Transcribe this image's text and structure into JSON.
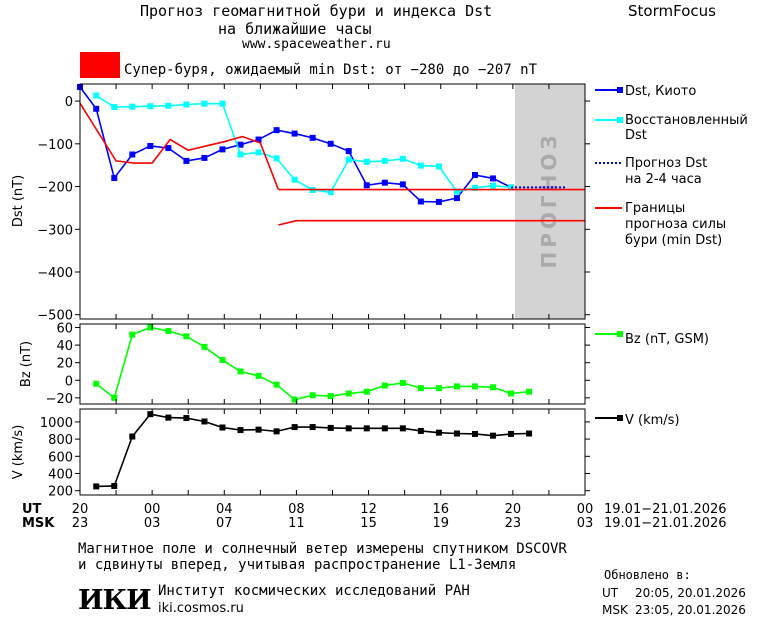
{
  "header": {
    "title_line1": "Прогноз геомагнитной бури и индекса Dst",
    "title_line2": "на ближайшие часы",
    "website": "www.spaceweather.ru",
    "brand": "StormFocus",
    "storm_label": "Супер-буря, ожидаемый min Dst: от −280 до −207 nT",
    "storm_color": "#ff0000"
  },
  "legend": {
    "dst_kyoto": "Dst, Киото",
    "restored_1": "Восстановленный",
    "restored_2": "Dst",
    "forecast_1": "Прогноз Dst",
    "forecast_2": "на 2-4 часа",
    "bounds_1": "Границы",
    "bounds_2": "прогноза силы",
    "bounds_3": "бури (min Dst)",
    "bz": "Bz (nT, GSM)",
    "v": "V (km/s)"
  },
  "forecast_band_text": "ПРОГНОЗ",
  "footer": {
    "ut_label": "UT",
    "msk_label": "MSK",
    "ut_range": "19.01−21.01.2026",
    "msk_range": "19.01−21.01.2026",
    "note_line1": "Магнитное поле и солнечный ветер измерены спутником DSCOVR",
    "note_line2": "и сдвинуты вперед, учитывая распространение L1-Земля",
    "institute_logo": "ИКИ",
    "institute_name": "Институт космических исследований РАН",
    "institute_url": "iki.cosmos.ru",
    "updated_label": "Обновлено в:",
    "updated_ut_label": "UT",
    "updated_ut": "20:05, 20.01.2026",
    "updated_msk_label": "MSK",
    "updated_msk": "23:05, 20.01.2026"
  },
  "chart_data": [
    {
      "type": "line",
      "panel": "dst",
      "ylabel": "Dst (nT)",
      "ylim": [
        -510,
        40
      ],
      "yticks": [
        0,
        -100,
        -200,
        -300,
        -400,
        -500
      ],
      "ytick_labels": [
        "0",
        "−100",
        "−200",
        "−300",
        "−400",
        "−500"
      ],
      "xlim": [
        20,
        48
      ],
      "xticks": [
        20,
        22,
        24,
        26,
        28,
        30,
        32,
        34,
        36,
        38,
        40,
        42,
        44,
        46,
        48
      ],
      "forecast_region": [
        44.0,
        47.9
      ],
      "series": [
        {
          "name": "Dst, Киото",
          "color": "#0000ff",
          "marker": "square",
          "x": [
            20.0,
            20.9,
            21.9,
            22.9,
            23.9,
            24.9,
            25.9,
            26.9,
            27.9,
            28.9,
            29.9,
            30.9,
            31.9,
            32.9,
            33.9,
            34.9,
            35.9,
            36.9,
            37.9,
            38.9,
            39.9,
            40.9,
            41.9,
            42.9,
            43.9
          ],
          "y": [
            33,
            -18,
            -180,
            -125,
            -105,
            -110,
            -140,
            -133,
            -113,
            -102,
            -90,
            -68,
            -76,
            -86,
            -100,
            -117,
            -197,
            -191,
            -195,
            -235,
            -236,
            -227,
            -173,
            -181,
            -202
          ]
        },
        {
          "name": "Восстановленный Dst",
          "color": "#00ffff",
          "marker": "square",
          "x": [
            20.9,
            21.9,
            22.9,
            23.9,
            24.9,
            25.9,
            26.9,
            27.9,
            28.9,
            29.9,
            30.9,
            31.9,
            32.9,
            33.9,
            34.9,
            35.9,
            36.9,
            37.9,
            38.9,
            39.9,
            40.9,
            41.9,
            42.9,
            43.9
          ],
          "y": [
            13,
            -14,
            -13,
            -12,
            -11,
            -8,
            -6,
            -6,
            -125,
            -120,
            -134,
            -184,
            -208,
            -213,
            -137,
            -142,
            -140,
            -135,
            -151,
            -153,
            -212,
            -203,
            -198,
            -202
          ]
        },
        {
          "name": "Прогноз Dst на 2-4 часа",
          "color": "#0000ff",
          "dash": true,
          "x": [
            43.9,
            46.9
          ],
          "y": [
            -202,
            -202
          ]
        },
        {
          "name": "Границы прогноза силы бури (min Dst)",
          "color": "#ff0000",
          "x": [
            20.0,
            22.0,
            23.0,
            24.0,
            25.0,
            26.0,
            27.0,
            28.0,
            29.0,
            30.0,
            31.0
          ],
          "y": [
            -5,
            -140,
            -145,
            -145,
            -90,
            -115,
            -105,
            -95,
            -83,
            -98,
            -207
          ]
        },
        {
          "name": "",
          "color": "#ff0000",
          "x": [
            31.0,
            48.0
          ],
          "y": [
            -207,
            -207
          ]
        },
        {
          "name": "",
          "color": "#ff0000",
          "x": [
            31.0,
            32.0,
            48.0
          ],
          "y": [
            -290,
            -280,
            -280
          ]
        }
      ]
    },
    {
      "type": "line",
      "panel": "bz",
      "ylabel": "Bz (nT)",
      "ylim": [
        -27,
        64
      ],
      "yticks": [
        60,
        40,
        20,
        0,
        -20
      ],
      "ytick_labels": [
        "60",
        "40",
        "20",
        "0",
        "−20"
      ],
      "xlim": [
        20,
        48
      ],
      "series": [
        {
          "name": "Bz (nT, GSM)",
          "color": "#00ff00",
          "marker": "square",
          "x": [
            20.9,
            21.9,
            22.9,
            23.9,
            24.9,
            25.9,
            26.9,
            27.9,
            28.9,
            29.9,
            30.9,
            31.9,
            32.9,
            33.9,
            34.9,
            35.9,
            36.9,
            37.9,
            38.9,
            39.9,
            40.9,
            41.9,
            42.9,
            43.9,
            44.9
          ],
          "y": [
            -4,
            -20,
            52,
            60,
            56,
            50,
            38,
            23,
            10,
            5,
            -5,
            -22,
            -17,
            -18,
            -15,
            -13,
            -6,
            -3,
            -9,
            -9,
            -7,
            -7,
            -8,
            -15,
            -13
          ]
        }
      ]
    },
    {
      "type": "line",
      "panel": "v",
      "ylabel": "V (km/s)",
      "ylim": [
        150,
        1150
      ],
      "yticks": [
        1000,
        800,
        600,
        400,
        200
      ],
      "ytick_labels": [
        "1000",
        "800",
        "600",
        "400",
        "200"
      ],
      "xlim": [
        20,
        48
      ],
      "xtick_labels_ut": [
        "20",
        "",
        "00",
        "",
        "04",
        "",
        "08",
        "",
        "12",
        "",
        "16",
        "",
        "20",
        "",
        "00"
      ],
      "xtick_labels_msk": [
        "23",
        "",
        "03",
        "",
        "07",
        "",
        "11",
        "",
        "15",
        "",
        "19",
        "",
        "23",
        "",
        "03"
      ],
      "series": [
        {
          "name": "V (km/s)",
          "color": "#000000",
          "marker": "square",
          "x": [
            20.9,
            21.9,
            22.9,
            23.9,
            24.9,
            25.9,
            26.9,
            27.9,
            28.9,
            29.9,
            30.9,
            31.9,
            32.9,
            33.9,
            34.9,
            35.9,
            36.9,
            37.9,
            38.9,
            39.9,
            40.9,
            41.9,
            42.9,
            43.9,
            44.9
          ],
          "y": [
            250,
            255,
            830,
            1090,
            1050,
            1045,
            1005,
            935,
            905,
            910,
            890,
            940,
            940,
            930,
            925,
            925,
            925,
            925,
            895,
            875,
            865,
            860,
            840,
            860,
            865
          ]
        }
      ]
    }
  ]
}
